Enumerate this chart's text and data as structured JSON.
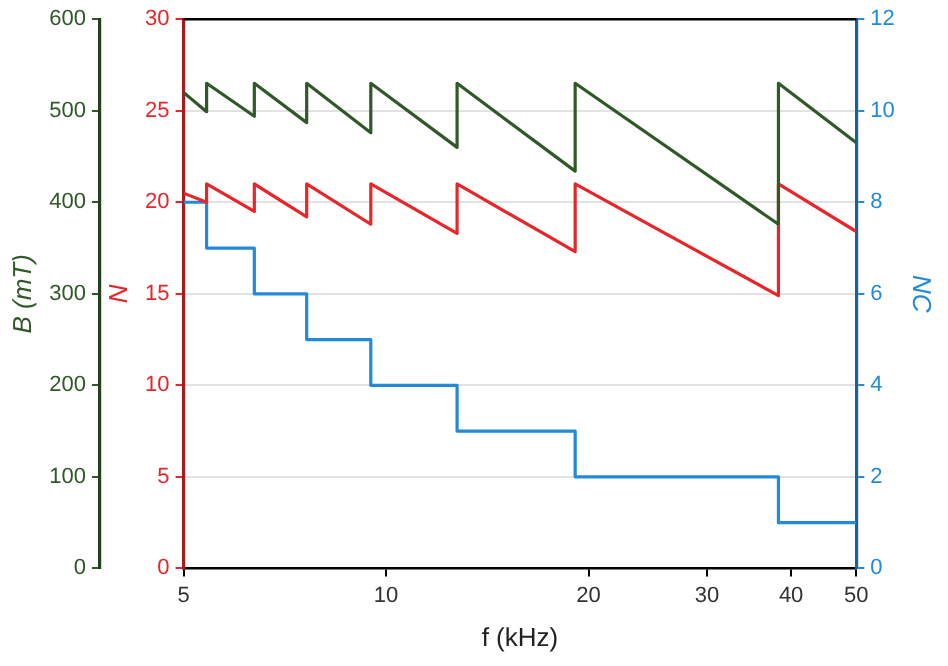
{
  "chart_data": {
    "type": "line",
    "xlabel": "f (kHz)",
    "ylabel": "B (mT)",
    "y2label": "N",
    "y3label": "NC",
    "log": "x",
    "grid": "y",
    "xlim": [
      5,
      50
    ],
    "xticks": [
      5,
      10,
      20,
      30,
      40,
      50
    ],
    "ylim": [
      0,
      600
    ],
    "yticks": [
      0,
      100,
      200,
      300,
      400,
      500,
      600
    ],
    "y2lim": [
      0,
      30
    ],
    "y2ticks": [
      0,
      5,
      10,
      15,
      20,
      25,
      30
    ],
    "y3lim": [
      0,
      12
    ],
    "y3ticks": [
      0,
      2,
      4,
      6,
      8,
      10,
      12
    ],
    "x": [
      5,
      5.41,
      5.41,
      6.37,
      6.37,
      7.62,
      7.62,
      9.49,
      9.49,
      12.75,
      12.75,
      19.1,
      19.1,
      38.3,
      38.3,
      50
    ],
    "series": [
      {
        "color": "#2f5a27",
        "values": [
          520,
          499,
          530,
          494,
          530,
          487,
          530,
          476,
          530,
          460,
          530,
          434,
          530,
          376,
          530,
          465
        ]
      },
      {
        "color": "#e8262a",
        "axis": "y2",
        "values": [
          20.5,
          20.0,
          21.0,
          19.5,
          21.0,
          19.2,
          21.0,
          18.8,
          21.0,
          18.3,
          21.0,
          17.3,
          21.0,
          14.9,
          21.0,
          18.4
        ]
      },
      {
        "color": "#2389d9",
        "axis": "y3",
        "values": [
          8,
          8,
          7,
          7,
          6,
          6,
          5,
          5,
          4,
          4,
          3,
          3,
          2,
          2,
          1,
          1
        ]
      }
    ]
  }
}
